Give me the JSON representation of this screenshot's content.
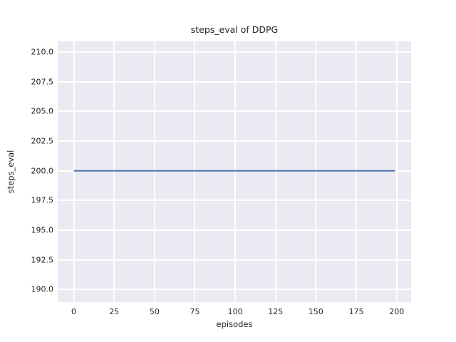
{
  "chart_data": {
    "type": "line",
    "title": "steps_eval of DDPG",
    "xlabel": "episodes",
    "ylabel": "steps_eval",
    "style": "seaborn-darkgrid",
    "grid": true,
    "legend": "none",
    "x_tick_labels": [
      "0",
      "25",
      "50",
      "75",
      "100",
      "125",
      "150",
      "175",
      "200"
    ],
    "x_tick_values": [
      0,
      25,
      50,
      75,
      100,
      125,
      150,
      175,
      200
    ],
    "y_tick_labels": [
      "190.0",
      "192.5",
      "195.0",
      "197.5",
      "200.0",
      "202.5",
      "205.0",
      "207.5",
      "210.0"
    ],
    "y_tick_values": [
      190,
      192.5,
      195,
      197.5,
      200,
      202.5,
      205,
      207.5,
      210
    ],
    "xlim": [
      -9.95,
      208.95
    ],
    "ylim": [
      188.95,
      210.9
    ],
    "series": [
      {
        "name": "steps_eval",
        "color": "#4c72b0",
        "x": [
          0,
          199
        ],
        "y": [
          200,
          200
        ],
        "description": "constant value 200 for every evaluation episode from 0 to 199"
      }
    ],
    "colors": {
      "figure_bg": "#ffffff",
      "plot_bg": "#eaeaf2",
      "grid": "#ffffff",
      "line": "#4c72b0",
      "text": "#262626"
    }
  }
}
